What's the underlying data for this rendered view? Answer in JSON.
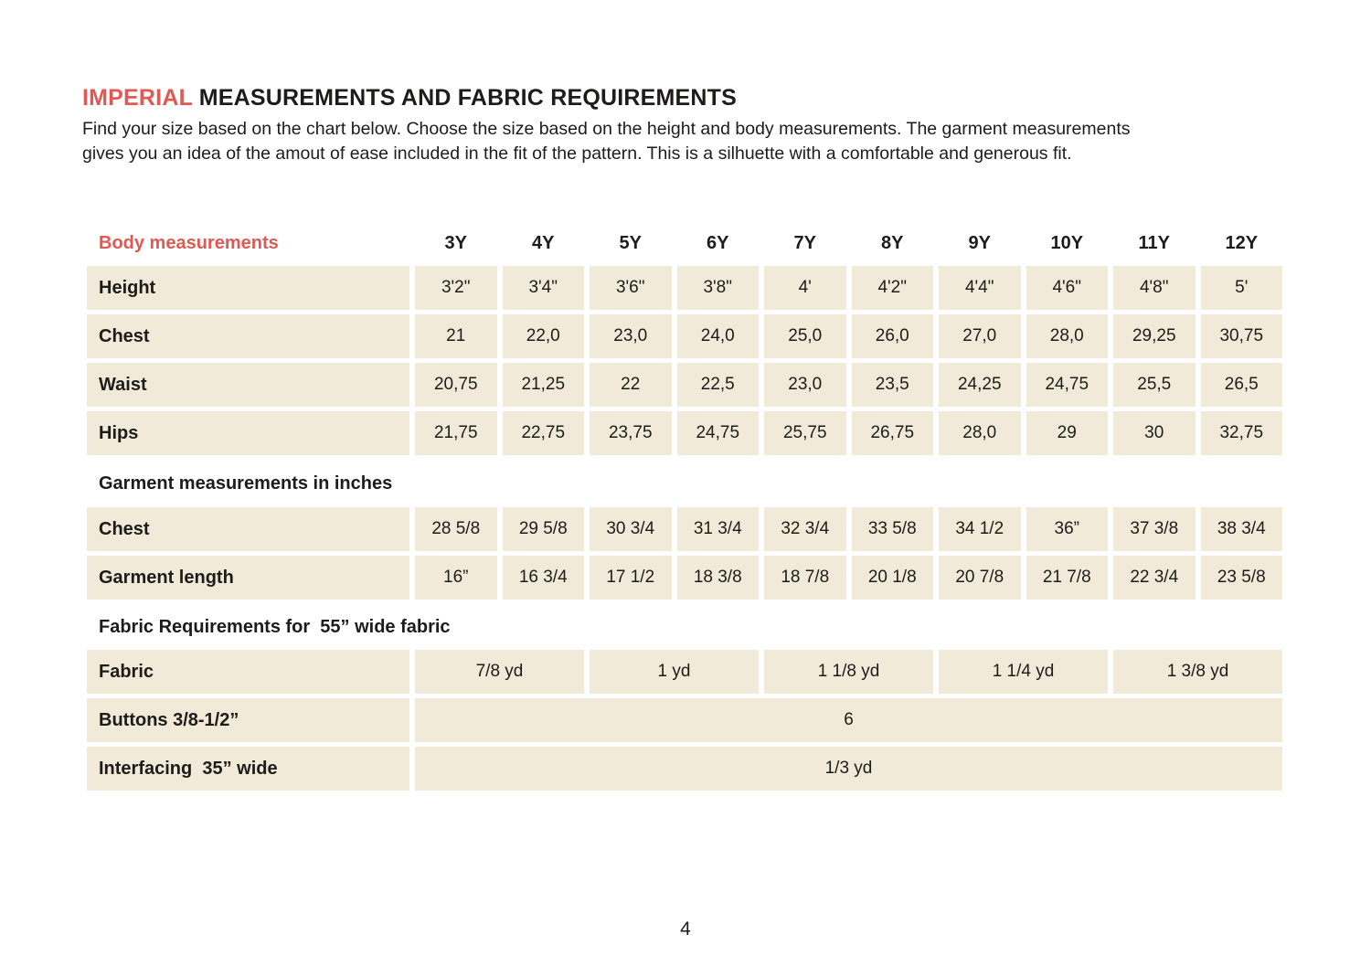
{
  "page": {
    "title_accent": "IMPERIAL",
    "title_rest": "MEASUREMENTS AND FABRIC REQUIREMENTS",
    "intro_line1": "Find your size based on the chart below. Choose the size based on the height and body measurements. The garment measurements",
    "intro_line2": "gives you an idea of the amout of ease included in the fit of the pattern. This is a silhuette with a comfortable and generous fit.",
    "page_number": "4"
  },
  "colors": {
    "accent_red": "#e25953",
    "cell_cream": "#f1ead8",
    "text": "#1e1c1a"
  },
  "table": {
    "header": {
      "label": "Body measurements",
      "sizes": [
        "3Y",
        "4Y",
        "5Y",
        "6Y",
        "7Y",
        "8Y",
        "9Y",
        "10Y",
        "11Y",
        "12Y"
      ]
    },
    "body_rows": [
      {
        "label": "Height",
        "values": [
          "3'2\"",
          "3'4\"",
          "3'6\"",
          "3'8\"",
          "4'",
          "4'2\"",
          "4'4\"",
          "4'6\"",
          "4'8\"",
          "5'"
        ]
      },
      {
        "label": "Chest",
        "values": [
          "21",
          "22,0",
          "23,0",
          "24,0",
          "25,0",
          "26,0",
          "27,0",
          "28,0",
          "29,25",
          "30,75"
        ]
      },
      {
        "label": "Waist",
        "values": [
          "20,75",
          "21,25",
          "22",
          "22,5",
          "23,0",
          "23,5",
          "24,25",
          "24,75",
          "25,5",
          "26,5"
        ]
      },
      {
        "label": "Hips",
        "values": [
          "21,75",
          "22,75",
          "23,75",
          "24,75",
          "25,75",
          "26,75",
          "28,0",
          "29",
          "30",
          "32,75"
        ]
      }
    ],
    "garment_section": {
      "heading": "Garment measurements in inches",
      "rows": [
        {
          "label": "Chest",
          "values": [
            "28 5/8",
            "29 5/8",
            "30 3/4",
            "31 3/4",
            "32 3/4",
            "33 5/8",
            "34 1/2",
            "36”",
            "37 3/8",
            "38 3/4"
          ]
        },
        {
          "label": "Garment length",
          "values": [
            "16”",
            "16 3/4",
            "17 1/2",
            "18 3/8",
            "18 7/8",
            "20 1/8",
            "20 7/8",
            "21 7/8",
            "22 3/4",
            "23 5/8"
          ]
        }
      ]
    },
    "fabric_section": {
      "heading": "Fabric Requirements for  55” wide fabric",
      "fabric_row": {
        "label": "Fabric",
        "values": [
          "7/8 yd",
          "1 yd",
          "1 1/8 yd",
          "1 1/4 yd",
          "1 3/8 yd"
        ]
      },
      "buttons_row": {
        "label": "Buttons 3/8-1/2”",
        "value": "6"
      },
      "interfacing_row": {
        "label": "Interfacing  35” wide",
        "value": "1/3 yd"
      }
    }
  }
}
